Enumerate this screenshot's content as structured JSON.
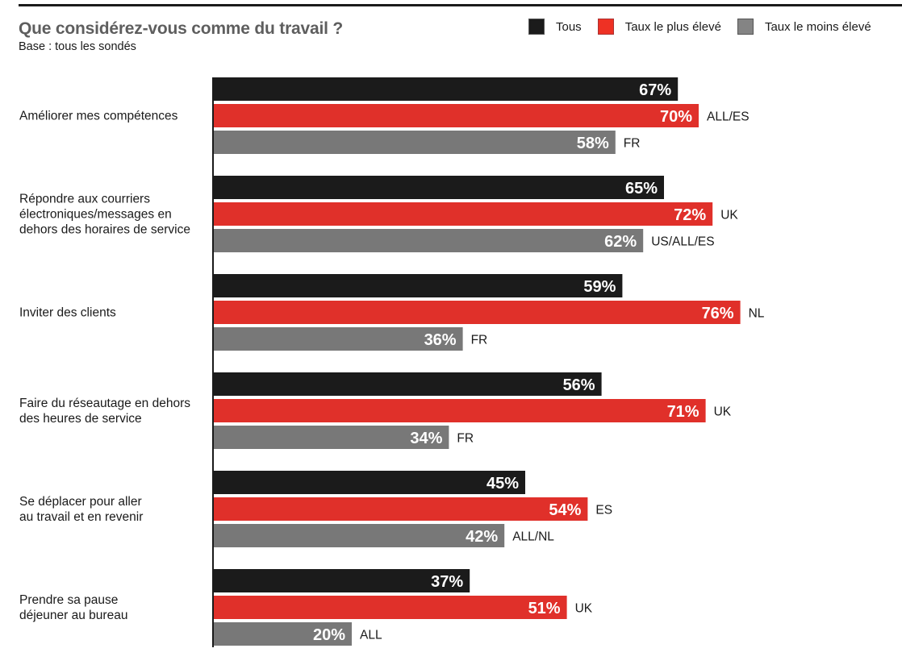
{
  "chart_data": {
    "type": "bar",
    "orientation": "horizontal",
    "title": "Que considérez-vous comme du travail ?",
    "subtitle": "Base : tous les sondés",
    "xlabel": "",
    "ylabel": "",
    "xlim": [
      0,
      100
    ],
    "grid": false,
    "legend_position": "top-right",
    "value_suffix": "%",
    "legend": [
      {
        "key": "tous",
        "label": "Tous",
        "color": "#1b1b1b"
      },
      {
        "key": "max",
        "label": "Taux le plus élevé",
        "color": "#e0302a"
      },
      {
        "key": "min",
        "label": "Taux le moins élevé",
        "color": "#787878"
      }
    ],
    "categories": [
      "Améliorer mes compétences",
      "Répondre aux courriers électroniques/messages en dehors des horaires de service",
      "Inviter des clients",
      "Faire du réseautage en dehors des heures de service",
      "Se déplacer pour aller au travail et en revenir",
      "Prendre sa pause déjeuner au bureau"
    ],
    "category_lines": [
      [
        "Améliorer mes compétences"
      ],
      [
        "Répondre aux courriers",
        "électroniques/messages en",
        "dehors des horaires de service"
      ],
      [
        "Inviter des clients"
      ],
      [
        "Faire du réseautage en dehors",
        "des heures de service"
      ],
      [
        "Se déplacer pour aller",
        "au travail et en revenir"
      ],
      [
        "Prendre sa pause",
        "déjeuner au bureau"
      ]
    ],
    "series": [
      {
        "name": "Tous",
        "key": "tous",
        "color": "#1b1b1b",
        "values": [
          67,
          65,
          59,
          56,
          45,
          37
        ],
        "countries": [
          "",
          "",
          "",
          "",
          "",
          ""
        ]
      },
      {
        "name": "Taux le plus élevé",
        "key": "max",
        "color": "#e0302a",
        "values": [
          70,
          72,
          76,
          71,
          54,
          51
        ],
        "countries": [
          "ALL/ES",
          "UK",
          "NL",
          "UK",
          "ES",
          "UK"
        ]
      },
      {
        "name": "Taux le moins élevé",
        "key": "min",
        "color": "#787878",
        "values": [
          58,
          62,
          36,
          34,
          42,
          20
        ],
        "countries": [
          "FR",
          "US/ALL/ES",
          "FR",
          "FR",
          "ALL/NL",
          "ALL"
        ]
      }
    ]
  }
}
